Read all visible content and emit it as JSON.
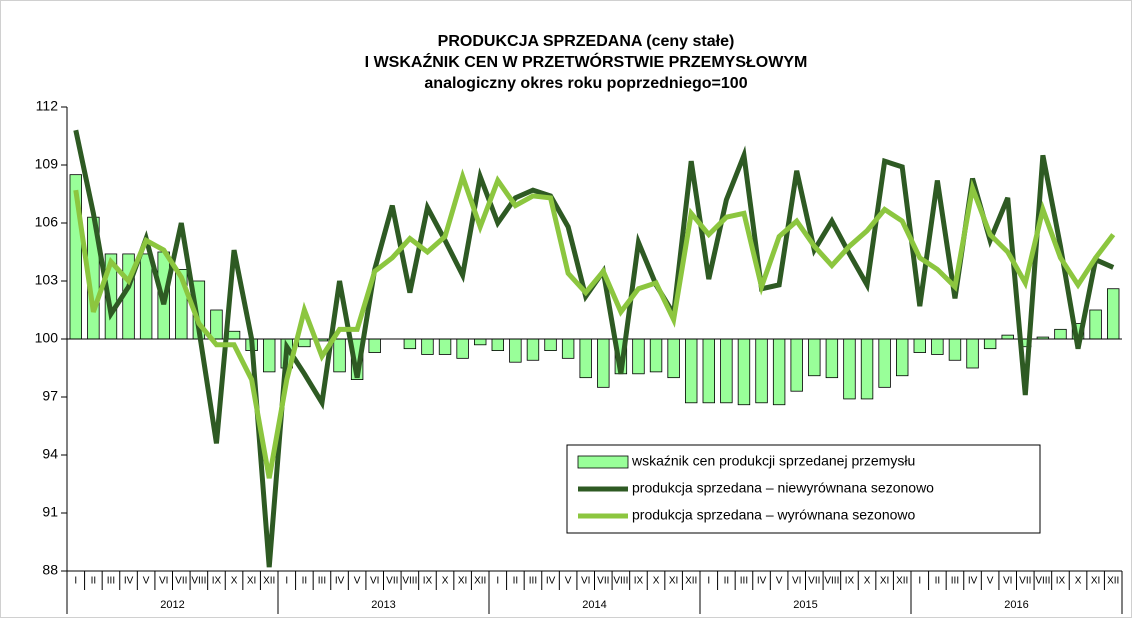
{
  "chart_data": {
    "type": "combo",
    "title": [
      "PRODUKCJA SPRZEDANA (ceny stałe)",
      "I WSKAŹNIK CEN W PRZETWÓRSTWIE PRZEMYSŁOWYM",
      "analogiczny okres roku poprzedniego=100"
    ],
    "categories": [
      "I",
      "II",
      "III",
      "IV",
      "V",
      "VI",
      "VII",
      "VIII",
      "IX",
      "X",
      "XI",
      "XII",
      "I",
      "II",
      "III",
      "IV",
      "V",
      "VI",
      "VII",
      "VIII",
      "IX",
      "X",
      "XI",
      "XII",
      "I",
      "II",
      "III",
      "IV",
      "V",
      "VI",
      "VII",
      "VIII",
      "IX",
      "X",
      "XI",
      "XII",
      "I",
      "II",
      "III",
      "IV",
      "V",
      "VI",
      "VII",
      "VIII",
      "IX",
      "X",
      "XI",
      "XII",
      "I",
      "II",
      "III",
      "IV",
      "V",
      "VI",
      "VII",
      "VIII",
      "IX",
      "X",
      "XI",
      "XII"
    ],
    "x_groups": [
      "2012",
      "2013",
      "2014",
      "2015",
      "2016"
    ],
    "ylim": [
      88,
      112
    ],
    "yticks": [
      88,
      91,
      94,
      97,
      100,
      103,
      106,
      109,
      112
    ],
    "bar_base": 100,
    "legend": "lower right",
    "series": [
      {
        "name": "wskaźnik cen produkcji sprzedanej przemysłu",
        "type": "bar",
        "color": "#99ff99",
        "values": [
          108.5,
          106.3,
          104.4,
          104.4,
          104.4,
          104.5,
          103.6,
          103.0,
          101.5,
          100.4,
          99.4,
          98.3,
          98.5,
          99.6,
          99.9,
          98.3,
          97.9,
          99.3,
          100.0,
          99.5,
          99.2,
          99.2,
          99.0,
          99.7,
          99.4,
          98.8,
          98.9,
          99.4,
          99.0,
          98.0,
          97.5,
          98.2,
          98.2,
          98.3,
          98.0,
          96.7,
          96.7,
          96.7,
          96.6,
          96.7,
          96.6,
          97.3,
          98.1,
          98.0,
          96.9,
          96.9,
          97.5,
          98.1,
          99.3,
          99.2,
          98.9,
          98.5,
          99.5,
          100.2,
          99.6,
          100.1,
          100.5,
          100.8,
          101.5,
          102.6
        ]
      },
      {
        "name": "produkcja sprzedana – niewyrównana sezonowo",
        "type": "line",
        "color": "#2e5a23",
        "values": [
          110.8,
          106.5,
          101.3,
          102.7,
          105.2,
          101.8,
          106.0,
          100.5,
          94.6,
          104.6,
          100.0,
          88.2,
          99.6,
          98.2,
          96.7,
          103.0,
          98.0,
          103.6,
          106.9,
          102.4,
          106.8,
          105.1,
          103.3,
          108.4,
          106.0,
          107.3,
          107.7,
          107.4,
          105.8,
          102.2,
          103.5,
          98.2,
          105.0,
          102.8,
          101.3,
          109.2,
          103.1,
          107.2,
          109.5,
          102.6,
          102.8,
          108.7,
          104.6,
          106.1,
          104.4,
          102.8,
          109.2,
          108.9,
          101.7,
          108.2,
          102.1,
          108.3,
          105.1,
          107.3,
          97.1,
          109.5,
          104.8,
          99.5,
          104.1,
          103.7
        ]
      },
      {
        "name": "produkcja sprzedana – wyrównana sezonowo",
        "type": "line",
        "color": "#8cc63f",
        "values": [
          107.7,
          101.4,
          104.0,
          103.0,
          105.1,
          104.6,
          103.2,
          100.8,
          99.7,
          99.7,
          97.9,
          92.8,
          97.9,
          101.5,
          99.1,
          100.5,
          100.5,
          103.5,
          104.2,
          105.2,
          104.5,
          105.3,
          108.4,
          105.8,
          108.2,
          106.9,
          107.4,
          107.3,
          103.4,
          102.4,
          103.5,
          101.4,
          102.6,
          102.9,
          101.0,
          106.5,
          105.4,
          106.3,
          106.5,
          102.7,
          105.3,
          106.1,
          104.8,
          103.8,
          104.8,
          105.6,
          106.7,
          106.1,
          104.2,
          103.6,
          102.7,
          107.8,
          105.4,
          104.5,
          102.9,
          106.7,
          104.2,
          102.8,
          104.2,
          105.4
        ]
      }
    ]
  }
}
